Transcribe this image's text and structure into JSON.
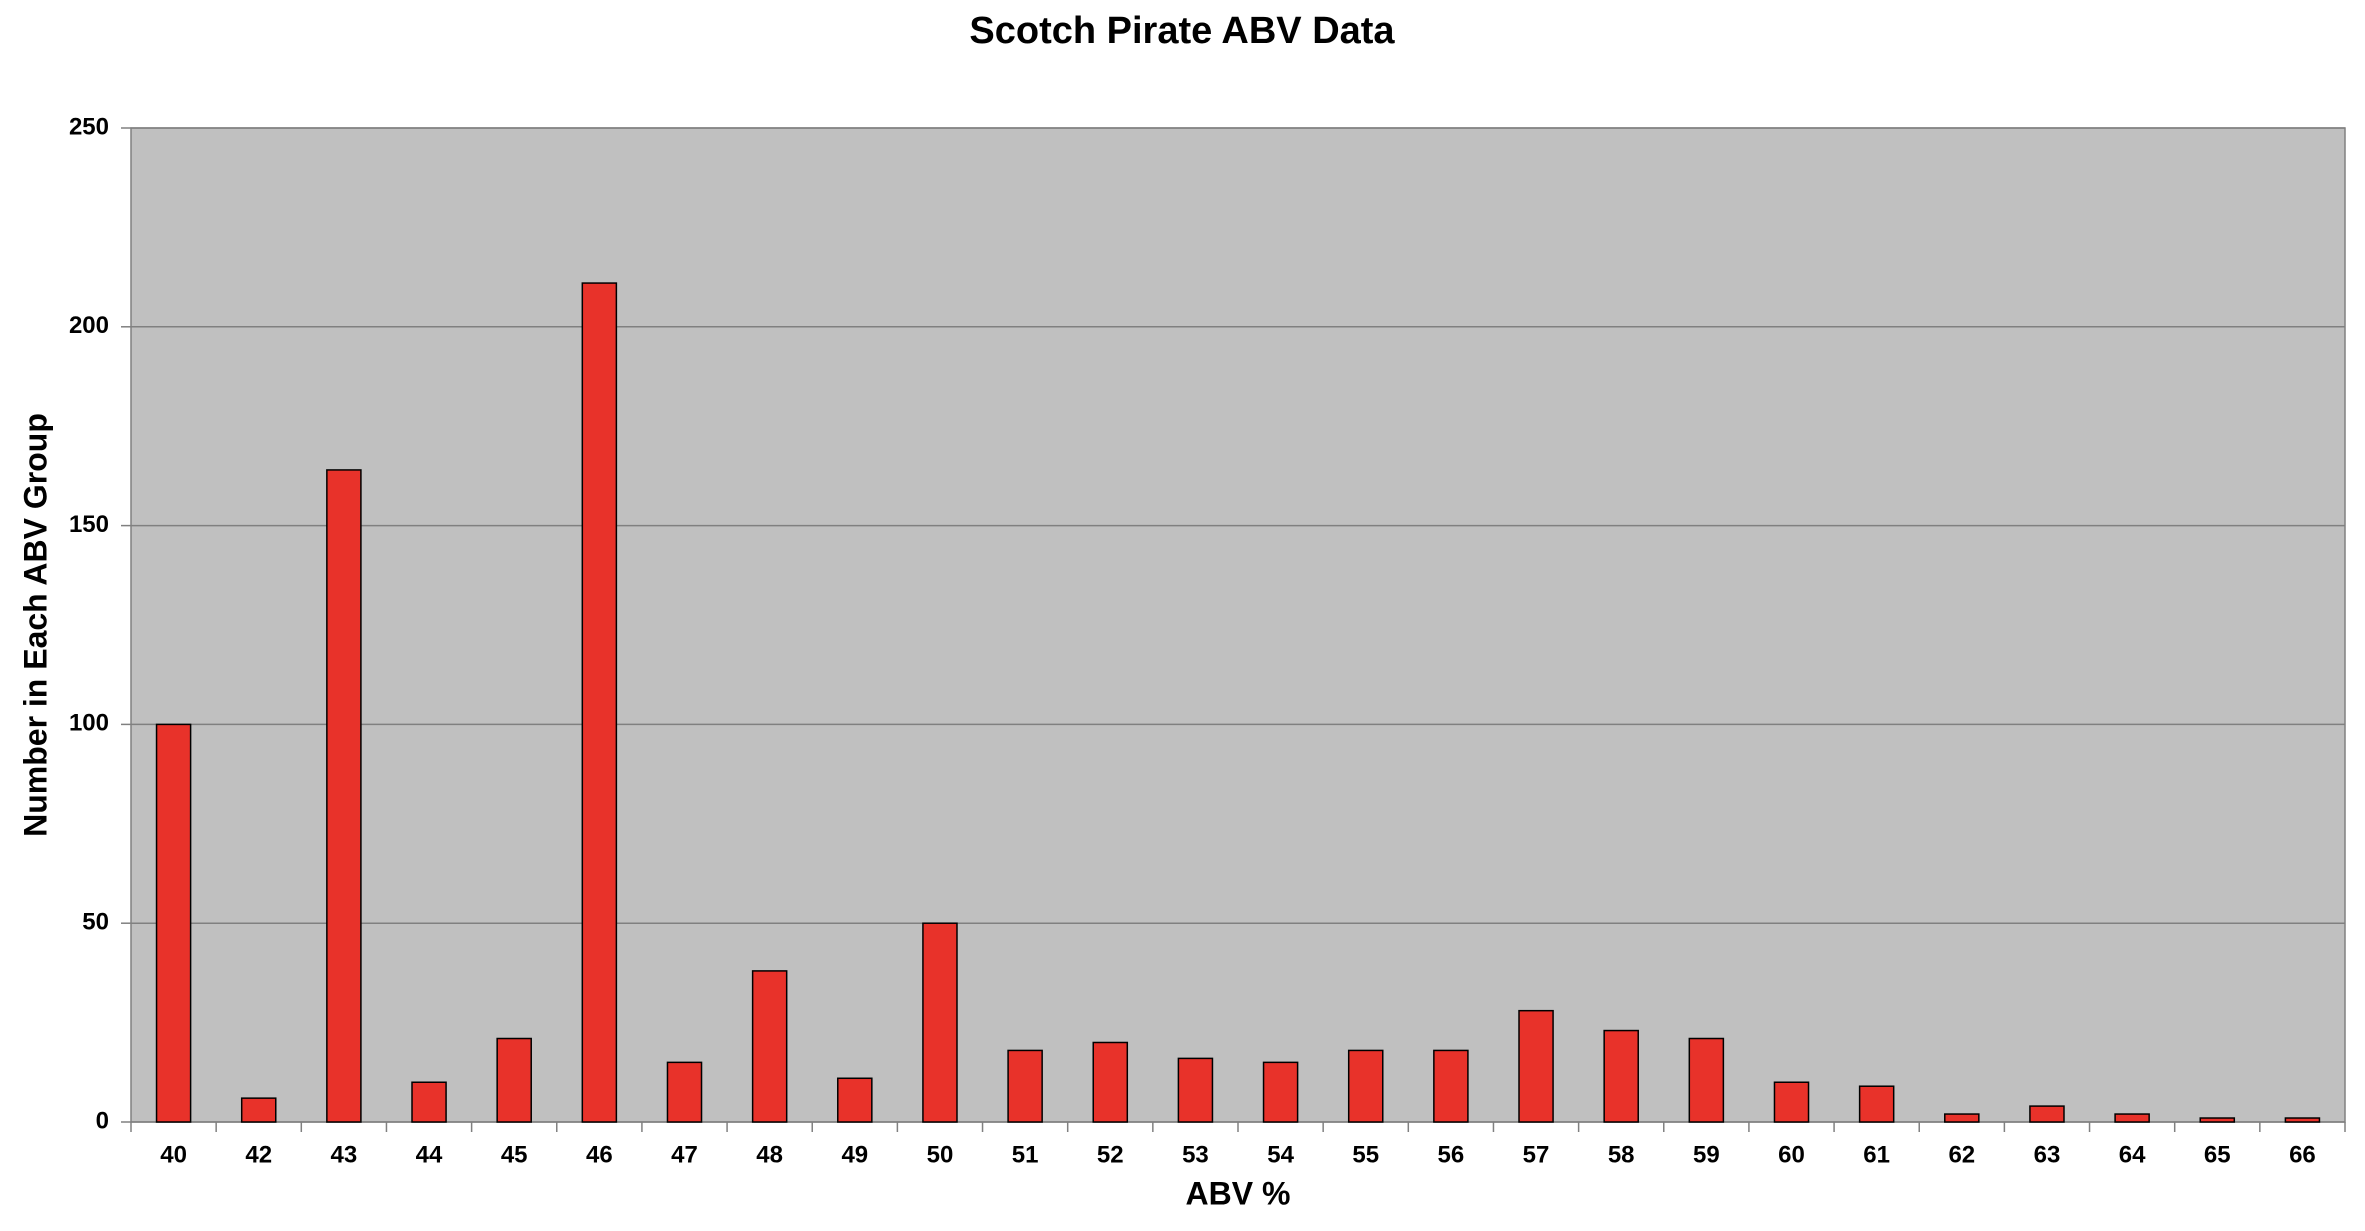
{
  "chart_data": {
    "type": "bar",
    "title": "Scotch Pirate ABV Data",
    "x_label": "ABV %",
    "y_label": "Number in Each ABV Group",
    "categories": [
      "40",
      "42",
      "43",
      "44",
      "45",
      "46",
      "47",
      "48",
      "49",
      "50",
      "51",
      "52",
      "53",
      "54",
      "55",
      "56",
      "57",
      "58",
      "59",
      "60",
      "61",
      "62",
      "63",
      "64",
      "65",
      "66"
    ],
    "values": [
      100,
      6,
      164,
      10,
      21,
      211,
      15,
      38,
      11,
      50,
      18,
      20,
      16,
      15,
      18,
      18,
      28,
      23,
      21,
      10,
      9,
      2,
      4,
      2,
      1,
      1
    ],
    "color": "#e8322a",
    "ylim": [
      0,
      250
    ],
    "yticks": [
      0,
      50,
      100,
      150,
      200,
      250
    ],
    "grid": true
  }
}
